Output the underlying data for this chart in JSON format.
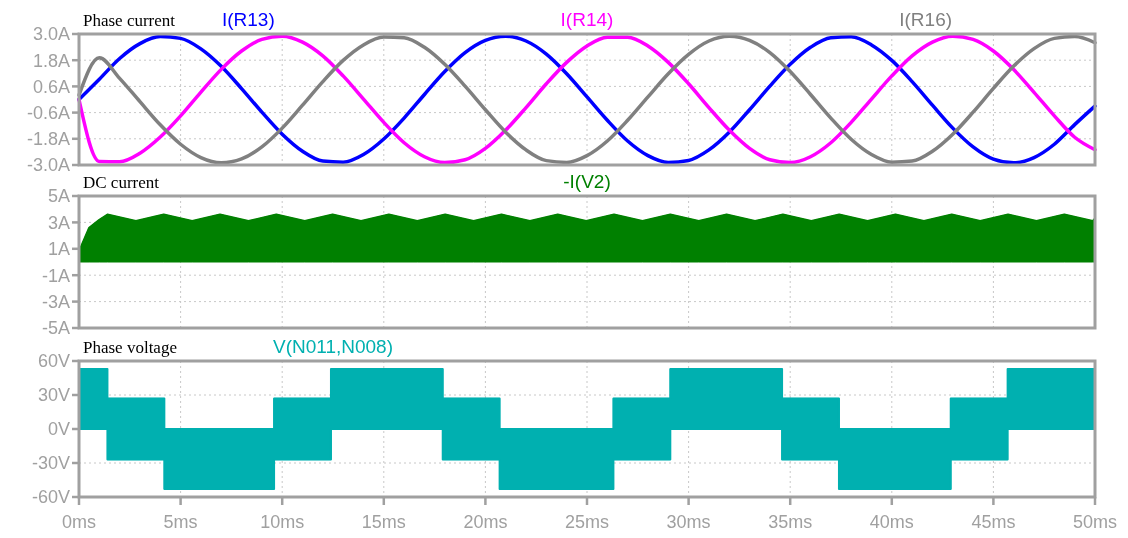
{
  "chart_data": [
    {
      "type": "line",
      "title": "Phase current",
      "legend": "top",
      "grid": true,
      "tick_labels": "y",
      "x": [
        0,
        1,
        2,
        3,
        4,
        5,
        6,
        7,
        8,
        9,
        10,
        11,
        12,
        13,
        14,
        15,
        16,
        17,
        18,
        19,
        20,
        21,
        22,
        23,
        24,
        25,
        26,
        27,
        28,
        29,
        30,
        31,
        32,
        33,
        34,
        35,
        36,
        37,
        38,
        39,
        40,
        41,
        42,
        43,
        44,
        45,
        46,
        47,
        48,
        49,
        50
      ],
      "xlim": [
        0,
        50
      ],
      "xticks": [
        0,
        5,
        10,
        15,
        20,
        25,
        30,
        35,
        40,
        45,
        50
      ],
      "ylim": [
        -3,
        3
      ],
      "yticks": [
        {
          "value": -3,
          "label": "-3.0A"
        },
        {
          "value": -1.8,
          "label": "-1.8A"
        },
        {
          "value": -0.6,
          "label": "-0.6A"
        },
        {
          "value": 0.6,
          "label": "0.6A"
        },
        {
          "value": 1.8,
          "label": "1.8A"
        },
        {
          "value": 3,
          "label": "3.0A"
        }
      ],
      "series": [
        {
          "name": "I(R13)",
          "color": "#0000ff",
          "values": [
            0.0,
            0.93,
            1.88,
            2.56,
            2.88,
            2.8,
            2.32,
            1.52,
            0.5,
            -0.58,
            -1.59,
            -2.37,
            -2.82,
            -2.87,
            -2.52,
            -1.81,
            -0.85,
            0.23,
            1.28,
            2.15,
            2.71,
            2.9,
            2.68,
            2.08,
            1.18,
            0.12,
            -0.95,
            -1.9,
            -2.57,
            -2.88,
            -2.79,
            -2.31,
            -1.5,
            -0.47,
            0.61,
            1.61,
            2.39,
            2.83,
            2.87,
            2.5,
            1.79,
            0.82,
            -0.26,
            -1.31,
            -2.17,
            -2.73,
            -2.9,
            -2.66,
            -2.05,
            -1.15,
            -0.3
          ]
        },
        {
          "name": "I(R14)",
          "color": "#ff00ff",
          "values": [
            0.0,
            -2.84,
            -2.85,
            -2.46,
            -1.72,
            -0.75,
            0.34,
            1.38,
            2.22,
            2.75,
            2.9,
            2.63,
            2.0,
            1.08,
            0.02,
            -1.05,
            -1.98,
            -2.62,
            -2.89,
            -2.76,
            -2.24,
            -1.4,
            -0.37,
            0.72,
            1.7,
            2.45,
            2.85,
            2.85,
            2.45,
            1.7,
            0.72,
            -0.37,
            -1.4,
            -2.24,
            -2.76,
            -2.89,
            -2.62,
            -1.98,
            -1.05,
            0.02,
            1.08,
            2.0,
            2.63,
            2.9,
            2.75,
            2.22,
            1.37,
            0.33,
            -0.75,
            -1.73,
            -2.3
          ]
        },
        {
          "name": "I(R16)",
          "color": "#808080",
          "values": [
            0.2,
            1.91,
            0.97,
            -0.1,
            -1.16,
            -2.05,
            -2.66,
            -2.9,
            -2.72,
            -2.17,
            -1.31,
            -0.26,
            0.82,
            1.79,
            2.5,
            2.86,
            2.83,
            2.39,
            1.61,
            0.61,
            -0.47,
            -1.5,
            -2.31,
            -2.8,
            -2.88,
            -2.57,
            -1.9,
            -0.95,
            0.12,
            1.18,
            2.07,
            2.68,
            2.9,
            2.71,
            2.15,
            1.28,
            0.23,
            -0.85,
            -1.82,
            -2.52,
            -2.87,
            -2.82,
            -2.37,
            -1.59,
            -0.58,
            0.51,
            1.53,
            2.33,
            2.8,
            2.88,
            2.6
          ]
        }
      ]
    },
    {
      "type": "area",
      "title": "DC current",
      "legend": "top",
      "grid": true,
      "tick_labels": "y",
      "x": [
        0,
        0.5,
        1.0,
        1.4,
        2.8,
        4.17,
        5.57,
        6.94,
        8.34,
        9.71,
        11.11,
        12.48,
        13.88,
        15.25,
        16.65,
        18.02,
        19.42,
        20.79,
        22.19,
        23.56,
        24.96,
        26.33,
        27.73,
        29.1,
        30.5,
        31.87,
        33.27,
        34.64,
        36.04,
        37.41,
        38.81,
        40.18,
        41.58,
        42.95,
        44.35,
        45.72,
        47.12,
        48.49,
        49.89,
        50
      ],
      "xlim": [
        0,
        50
      ],
      "xticks": [
        0,
        5,
        10,
        15,
        20,
        25,
        30,
        35,
        40,
        45,
        50
      ],
      "ylim": [
        -5,
        5
      ],
      "yticks": [
        {
          "value": -5,
          "label": "-5A"
        },
        {
          "value": -3,
          "label": "-3A"
        },
        {
          "value": -1,
          "label": "-1A"
        },
        {
          "value": 1,
          "label": "1A"
        },
        {
          "value": 3,
          "label": "3A"
        },
        {
          "value": 5,
          "label": "5A"
        }
      ],
      "series": [
        {
          "name": "-I(V2)",
          "color": "#008000",
          "values": [
            0.8,
            2.6,
            3.2,
            3.6,
            3.1,
            3.6,
            3.1,
            3.6,
            3.1,
            3.6,
            3.1,
            3.6,
            3.1,
            3.6,
            3.1,
            3.6,
            3.1,
            3.6,
            3.1,
            3.6,
            3.1,
            3.6,
            3.1,
            3.6,
            3.1,
            3.6,
            3.1,
            3.6,
            3.1,
            3.6,
            3.1,
            3.6,
            3.1,
            3.6,
            3.1,
            3.6,
            3.1,
            3.6,
            3.1,
            3.3
          ]
        }
      ]
    },
    {
      "type": "area",
      "title": "Phase voltage",
      "legend": "top",
      "grid": true,
      "x": [
        0,
        1.4,
        1.4,
        4.2,
        4.2,
        9.6,
        9.6,
        12.4,
        12.4,
        17.9,
        17.9,
        20.7,
        20.7,
        26.3,
        26.3,
        29.1,
        29.1,
        34.6,
        34.6,
        37.4,
        37.4,
        42.9,
        42.9,
        45.7,
        45.7,
        50
      ],
      "xlim": [
        0,
        50
      ],
      "xticks": [
        {
          "value": 0,
          "label": "0ms"
        },
        {
          "value": 5,
          "label": "5ms"
        },
        {
          "value": 10,
          "label": "10ms"
        },
        {
          "value": 15,
          "label": "15ms"
        },
        {
          "value": 20,
          "label": "20ms"
        },
        {
          "value": 25,
          "label": "25ms"
        },
        {
          "value": 30,
          "label": "30ms"
        },
        {
          "value": 35,
          "label": "35ms"
        },
        {
          "value": 40,
          "label": "40ms"
        },
        {
          "value": 45,
          "label": "45ms"
        },
        {
          "value": 50,
          "label": "50ms"
        }
      ],
      "ylim": [
        -60,
        60
      ],
      "yticks": [
        {
          "value": -60,
          "label": "-60V"
        },
        {
          "value": -30,
          "label": "-30V"
        },
        {
          "value": 0,
          "label": "0V"
        },
        {
          "value": 30,
          "label": "30V"
        },
        {
          "value": 60,
          "label": "60V"
        }
      ],
      "series": [
        {
          "name": "V(N011,N008)",
          "color": "#00b0b0",
          "values": [
            53,
            53,
            27,
            27,
            0,
            0,
            27,
            27,
            53,
            53,
            27,
            27,
            0,
            0,
            27,
            27,
            53,
            53,
            27,
            27,
            0,
            0,
            27,
            27,
            53,
            53
          ]
        },
        {
          "color": "#00b0b0",
          "values": [
            0,
            0,
            -27,
            -27,
            -53,
            -53,
            -27,
            -27,
            0,
            0,
            -27,
            -27,
            -53,
            -53,
            -27,
            -27,
            0,
            0,
            -27,
            -27,
            -53,
            -53,
            -27,
            -27,
            0,
            0
          ]
        }
      ]
    }
  ]
}
